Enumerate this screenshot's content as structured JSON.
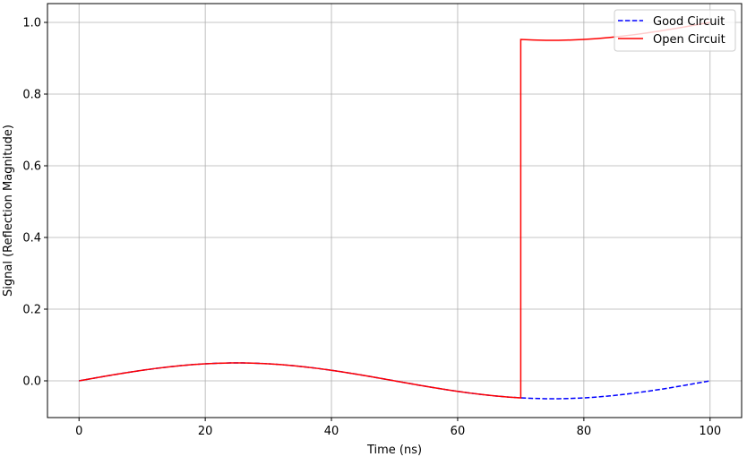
{
  "chart_data": {
    "type": "line",
    "title": "",
    "xlabel": "Time (ns)",
    "ylabel": "Signal (Reflection Magnitude)",
    "xlim": [
      -5,
      105
    ],
    "ylim": [
      -0.1025,
      1.0525
    ],
    "xticks": [
      0,
      20,
      40,
      60,
      80,
      100
    ],
    "xtick_labels": [
      "0",
      "20",
      "40",
      "60",
      "80",
      "100"
    ],
    "yticks": [
      0.0,
      0.2,
      0.4,
      0.6,
      0.8,
      1.0
    ],
    "ytick_labels": [
      "0.0",
      "0.2",
      "0.4",
      "0.6",
      "0.8",
      "1.0"
    ],
    "grid": true,
    "legend_placement": "upper-right",
    "series": [
      {
        "name": "Good Circuit",
        "color": "#0000ff",
        "style": "dashed",
        "x": [
          0,
          2,
          4,
          6,
          8,
          10,
          12,
          14,
          16,
          18,
          20,
          22,
          24,
          26,
          28,
          30,
          32,
          34,
          36,
          38,
          40,
          42,
          44,
          46,
          48,
          50,
          52,
          54,
          56,
          58,
          60,
          62,
          64,
          66,
          68,
          70,
          72,
          74,
          76,
          78,
          80,
          82,
          84,
          86,
          88,
          90,
          92,
          94,
          96,
          98,
          100
        ],
        "y": [
          0,
          0.00628,
          0.01243,
          0.01844,
          0.02409,
          0.02939,
          0.03422,
          0.03854,
          0.04222,
          0.04524,
          0.04755,
          0.04911,
          0.0499,
          0.0499,
          0.04911,
          0.04755,
          0.04524,
          0.04222,
          0.03854,
          0.03422,
          0.02939,
          0.02409,
          0.01844,
          0.01243,
          0.00628,
          0,
          -0.00628,
          -0.01243,
          -0.01844,
          -0.02409,
          -0.02939,
          -0.03422,
          -0.03854,
          -0.04222,
          -0.04524,
          -0.04755,
          -0.04911,
          -0.0499,
          -0.0499,
          -0.04911,
          -0.04755,
          -0.04524,
          -0.04222,
          -0.03854,
          -0.03422,
          -0.02939,
          -0.02409,
          -0.01844,
          -0.01243,
          -0.00628,
          0
        ]
      },
      {
        "name": "Open Circuit",
        "color": "#ff0000",
        "style": "solid",
        "x": [
          0,
          2,
          4,
          6,
          8,
          10,
          12,
          14,
          16,
          18,
          20,
          22,
          24,
          26,
          28,
          30,
          32,
          34,
          36,
          38,
          40,
          42,
          44,
          46,
          48,
          50,
          52,
          54,
          56,
          58,
          60,
          62,
          64,
          66,
          68,
          70,
          70,
          72,
          74,
          76,
          78,
          80,
          82,
          84,
          86,
          88,
          90,
          92,
          94,
          96,
          98,
          100
        ],
        "y": [
          0,
          0.00628,
          0.01243,
          0.01844,
          0.02409,
          0.02939,
          0.03422,
          0.03854,
          0.04222,
          0.04524,
          0.04755,
          0.04911,
          0.0499,
          0.0499,
          0.04911,
          0.04755,
          0.04524,
          0.04222,
          0.03854,
          0.03422,
          0.02939,
          0.02409,
          0.01844,
          0.01243,
          0.00628,
          0,
          -0.00628,
          -0.01243,
          -0.01844,
          -0.02409,
          -0.02939,
          -0.03422,
          -0.03854,
          -0.04222,
          -0.04524,
          -0.04755,
          0.95245,
          0.95089,
          0.9501,
          0.9501,
          0.95089,
          0.95245,
          0.95476,
          0.95778,
          0.96146,
          0.96578,
          0.97061,
          0.97591,
          0.98156,
          0.98757,
          0.99372,
          1.0
        ]
      }
    ]
  }
}
